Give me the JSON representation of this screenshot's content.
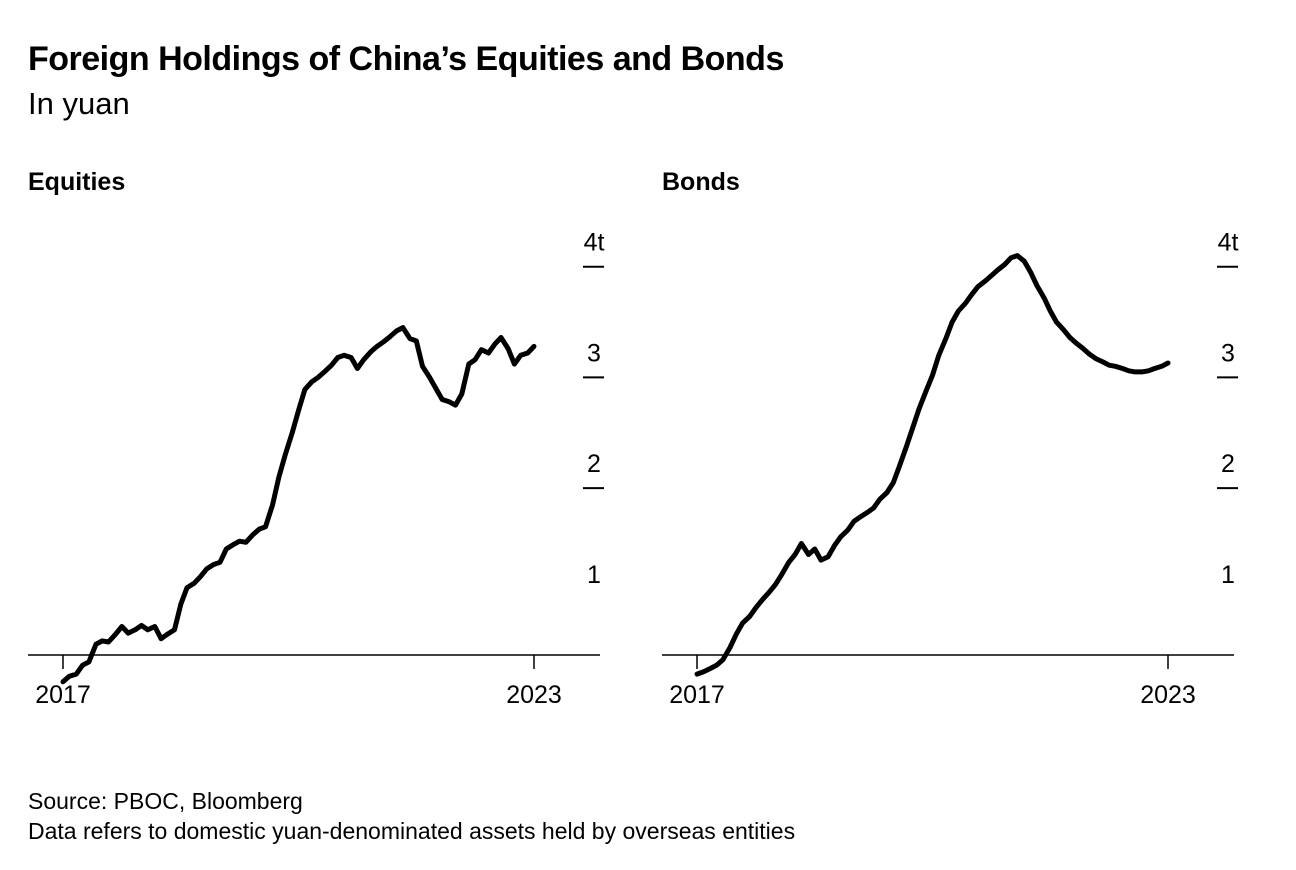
{
  "header": {
    "title": "Foreign Holdings of China’s Equities and Bonds",
    "subtitle": "In yuan"
  },
  "footer": {
    "source": "Source: PBOC, Bloomberg",
    "note": "Data refers to domestic yuan-denominated assets held by overseas entities"
  },
  "colors": {
    "line": "#000000",
    "background": "#ffffff"
  },
  "chart_data": [
    {
      "type": "line",
      "title": "Equities",
      "xlabel": "",
      "ylabel": "",
      "x_ticks": [
        2017,
        2023
      ],
      "x_tick_labels": [
        "2017",
        "2023"
      ],
      "xlim": [
        2017,
        2023
      ],
      "y_ticks": [
        1,
        2,
        3,
        4
      ],
      "y_tick_labels": [
        "1",
        "2",
        "3",
        "4t"
      ],
      "ylim": [
        0,
        4.3
      ],
      "grid": false,
      "series": [
        {
          "name": "Equities",
          "x": [
            2017.0,
            2017.08,
            2017.17,
            2017.25,
            2017.33,
            2017.42,
            2017.5,
            2017.58,
            2017.67,
            2017.75,
            2017.83,
            2017.92,
            2018.0,
            2018.08,
            2018.17,
            2018.25,
            2018.33,
            2018.42,
            2018.5,
            2018.58,
            2018.67,
            2018.75,
            2018.83,
            2018.92,
            2019.0,
            2019.08,
            2019.17,
            2019.25,
            2019.33,
            2019.42,
            2019.5,
            2019.58,
            2019.67,
            2019.75,
            2019.83,
            2019.92,
            2020.0,
            2020.08,
            2020.17,
            2020.25,
            2020.33,
            2020.42,
            2020.5,
            2020.58,
            2020.67,
            2020.75,
            2020.83,
            2020.92,
            2021.0,
            2021.08,
            2021.17,
            2021.25,
            2021.33,
            2021.42,
            2021.5,
            2021.58,
            2021.67,
            2021.75,
            2021.83,
            2021.92,
            2022.0,
            2022.08,
            2022.17,
            2022.25,
            2022.33,
            2022.42,
            2022.5,
            2022.58,
            2022.67,
            2022.75,
            2022.83,
            2022.92,
            2023.0
          ],
          "values": [
            0.25,
            0.3,
            0.32,
            0.4,
            0.43,
            0.59,
            0.62,
            0.61,
            0.68,
            0.75,
            0.69,
            0.72,
            0.76,
            0.72,
            0.75,
            0.64,
            0.68,
            0.72,
            0.95,
            1.1,
            1.14,
            1.2,
            1.27,
            1.31,
            1.33,
            1.45,
            1.49,
            1.52,
            1.51,
            1.58,
            1.63,
            1.65,
            1.85,
            2.1,
            2.3,
            2.5,
            2.7,
            2.89,
            2.96,
            3.0,
            3.05,
            3.11,
            3.18,
            3.2,
            3.18,
            3.08,
            3.16,
            3.23,
            3.28,
            3.32,
            3.37,
            3.42,
            3.45,
            3.35,
            3.33,
            3.1,
            3.0,
            2.9,
            2.8,
            2.78,
            2.75,
            2.85,
            3.12,
            3.16,
            3.25,
            3.22,
            3.3,
            3.36,
            3.26,
            3.12,
            3.2,
            3.22,
            3.28
          ]
        }
      ]
    },
    {
      "type": "line",
      "title": "Bonds",
      "xlabel": "",
      "ylabel": "",
      "x_ticks": [
        2017,
        2023
      ],
      "x_tick_labels": [
        "2017",
        "2023"
      ],
      "xlim": [
        2017,
        2023
      ],
      "y_ticks": [
        1,
        2,
        3,
        4
      ],
      "y_tick_labels": [
        "1",
        "2",
        "3",
        "4t"
      ],
      "ylim": [
        0,
        4.3
      ],
      "grid": false,
      "series": [
        {
          "name": "Bonds",
          "x": [
            2017.0,
            2017.08,
            2017.17,
            2017.25,
            2017.33,
            2017.42,
            2017.5,
            2017.58,
            2017.67,
            2017.75,
            2017.83,
            2017.92,
            2018.0,
            2018.08,
            2018.17,
            2018.25,
            2018.33,
            2018.42,
            2018.5,
            2018.58,
            2018.67,
            2018.75,
            2018.83,
            2018.92,
            2019.0,
            2019.08,
            2019.17,
            2019.25,
            2019.33,
            2019.42,
            2019.5,
            2019.58,
            2019.67,
            2019.75,
            2019.83,
            2019.92,
            2020.0,
            2020.08,
            2020.17,
            2020.25,
            2020.33,
            2020.42,
            2020.5,
            2020.58,
            2020.67,
            2020.75,
            2020.83,
            2020.92,
            2021.0,
            2021.08,
            2021.17,
            2021.25,
            2021.33,
            2021.42,
            2021.5,
            2021.58,
            2021.67,
            2021.75,
            2021.83,
            2021.92,
            2022.0,
            2022.08,
            2022.17,
            2022.25,
            2022.33,
            2022.42,
            2022.5,
            2022.58,
            2022.67,
            2022.75,
            2022.83,
            2022.92,
            2023.0
          ],
          "values": [
            0.32,
            0.34,
            0.37,
            0.4,
            0.45,
            0.56,
            0.68,
            0.78,
            0.84,
            0.92,
            0.99,
            1.06,
            1.13,
            1.22,
            1.33,
            1.4,
            1.5,
            1.4,
            1.45,
            1.35,
            1.38,
            1.48,
            1.56,
            1.62,
            1.7,
            1.74,
            1.78,
            1.82,
            1.9,
            1.96,
            2.05,
            2.2,
            2.38,
            2.55,
            2.72,
            2.88,
            3.02,
            3.2,
            3.35,
            3.5,
            3.6,
            3.67,
            3.75,
            3.82,
            3.87,
            3.92,
            3.97,
            4.02,
            4.08,
            4.1,
            4.05,
            3.95,
            3.83,
            3.72,
            3.6,
            3.5,
            3.43,
            3.36,
            3.31,
            3.26,
            3.21,
            3.17,
            3.14,
            3.11,
            3.1,
            3.08,
            3.06,
            3.05,
            3.05,
            3.06,
            3.08,
            3.1,
            3.13
          ]
        }
      ]
    }
  ]
}
